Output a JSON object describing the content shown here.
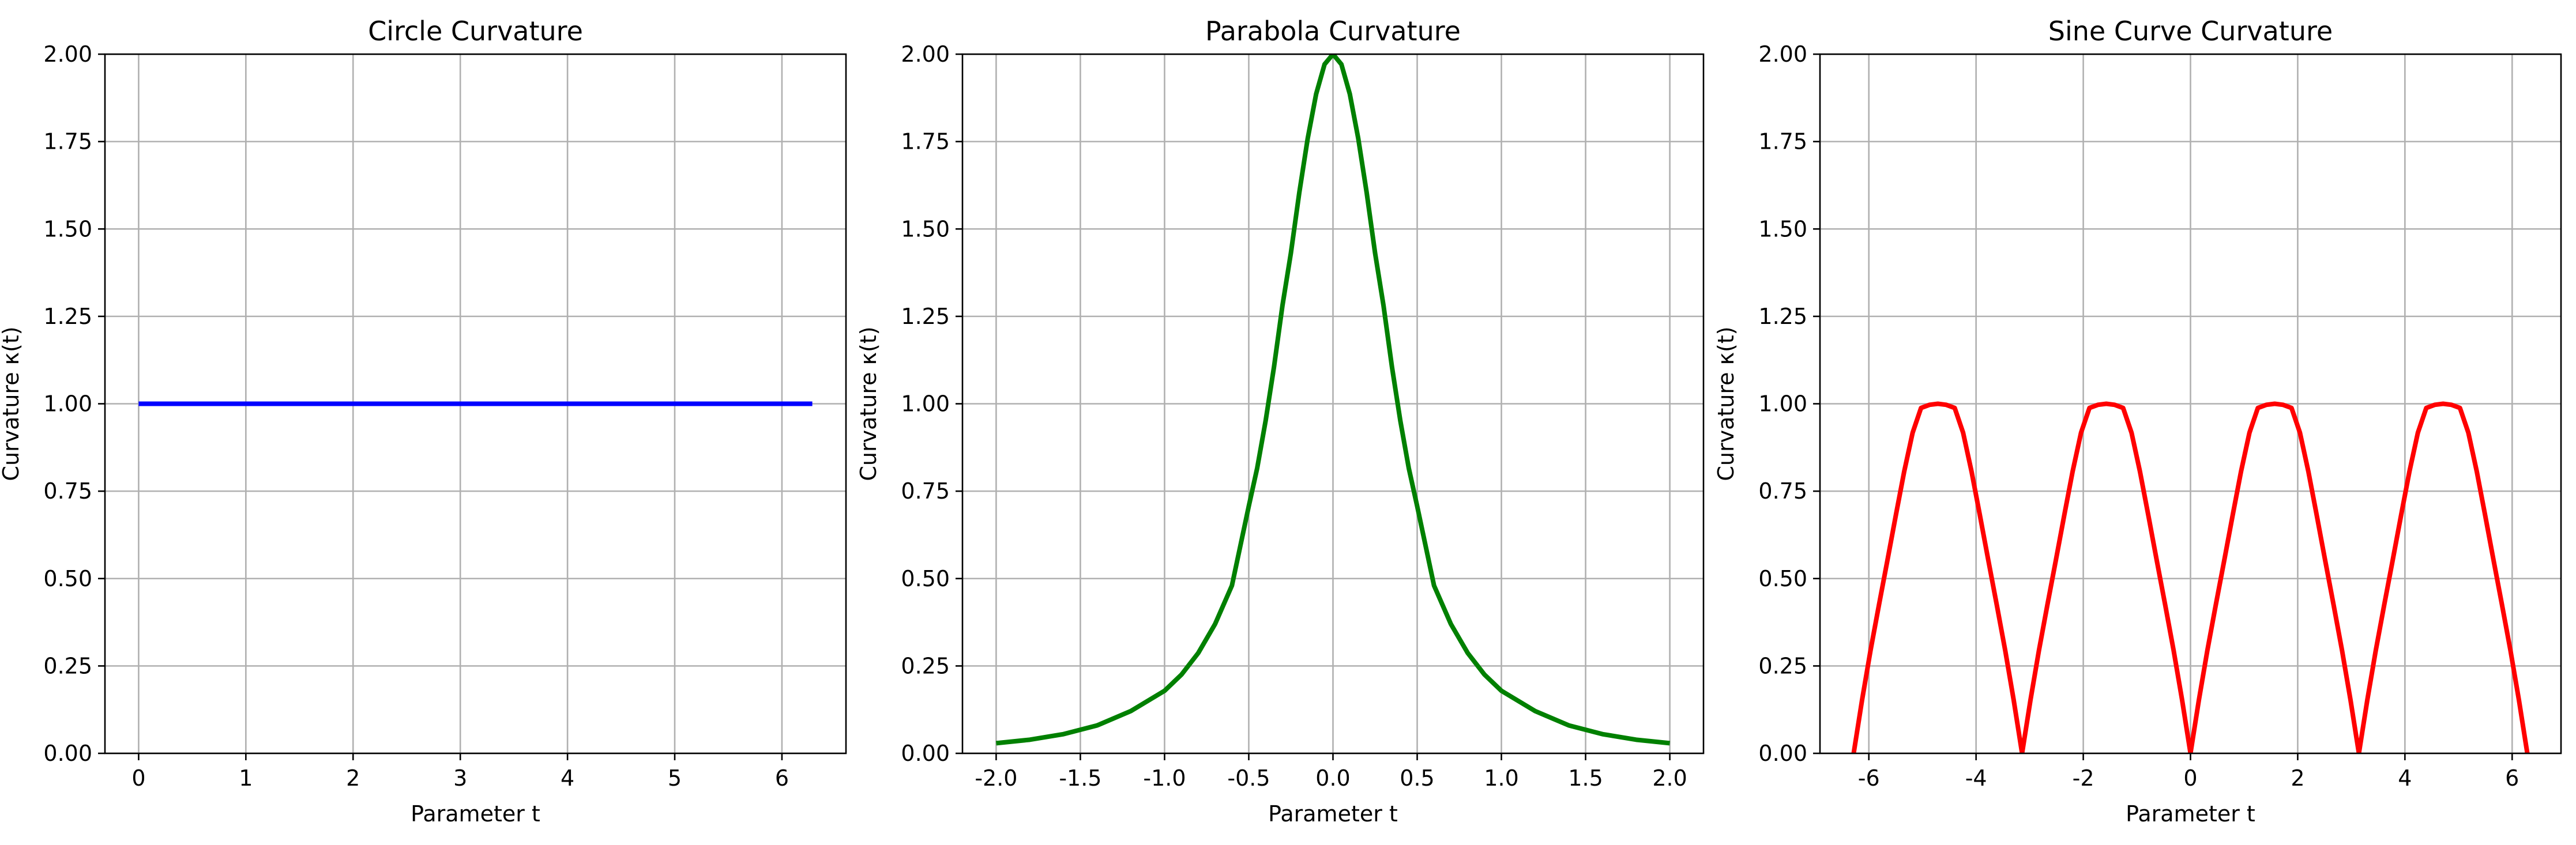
{
  "chart_data": [
    {
      "type": "line",
      "title": "Circle Curvature",
      "xlabel": "Parameter t",
      "ylabel": "Curvature κ(t)",
      "xlim": [
        -0.3142,
        6.5973
      ],
      "ylim": [
        0,
        2
      ],
      "xticks": [
        0,
        1,
        2,
        3,
        4,
        5,
        6
      ],
      "xtick_labels": [
        "0",
        "1",
        "2",
        "3",
        "4",
        "5",
        "6"
      ],
      "yticks": [
        0,
        0.25,
        0.5,
        0.75,
        1.0,
        1.25,
        1.5,
        1.75,
        2.0
      ],
      "ytick_labels": [
        "0.00",
        "0.25",
        "0.50",
        "0.75",
        "1.00",
        "1.25",
        "1.50",
        "1.75",
        "2.00"
      ],
      "grid": true,
      "series": [
        {
          "color": "#0000ff",
          "x": [
            0,
            0.5,
            1,
            1.5,
            2,
            2.5,
            3,
            3.5,
            4,
            4.5,
            5,
            5.5,
            6,
            6.2832
          ],
          "y": [
            1,
            1,
            1,
            1,
            1,
            1,
            1,
            1,
            1,
            1,
            1,
            1,
            1,
            1
          ]
        }
      ]
    },
    {
      "type": "line",
      "title": "Parabola Curvature",
      "xlabel": "Parameter t",
      "ylabel": "Curvature κ(t)",
      "xlim": [
        -2.2,
        2.2
      ],
      "ylim": [
        0,
        2
      ],
      "xticks": [
        -2,
        -1.5,
        -1,
        -0.5,
        0,
        0.5,
        1,
        1.5,
        2
      ],
      "xtick_labels": [
        "-2.0",
        "-1.5",
        "-1.0",
        "-0.5",
        "0.0",
        "0.5",
        "1.0",
        "1.5",
        "2.0"
      ],
      "yticks": [
        0,
        0.25,
        0.5,
        0.75,
        1.0,
        1.25,
        1.5,
        1.75,
        2.0
      ],
      "ytick_labels": [
        "0.00",
        "0.25",
        "0.50",
        "0.75",
        "1.00",
        "1.25",
        "1.50",
        "1.75",
        "2.00"
      ],
      "grid": true,
      "series": [
        {
          "color": "#008000",
          "x": [
            -2,
            -1.8,
            -1.6,
            -1.4,
            -1.2,
            -1,
            -0.9,
            -0.8,
            -0.7,
            -0.6,
            -0.5,
            -0.45,
            -0.4,
            -0.35,
            -0.3,
            -0.25,
            -0.2,
            -0.15,
            -0.1,
            -0.05,
            0,
            0.05,
            0.1,
            0.15,
            0.2,
            0.25,
            0.3,
            0.35,
            0.4,
            0.45,
            0.5,
            0.6,
            0.7,
            0.8,
            0.9,
            1,
            1.2,
            1.4,
            1.6,
            1.8,
            2
          ],
          "y": [
            0.029,
            0.039,
            0.055,
            0.08,
            0.121,
            0.179,
            0.225,
            0.287,
            0.37,
            0.48,
            0.707,
            0.816,
            0.951,
            1.106,
            1.281,
            1.431,
            1.604,
            1.759,
            1.886,
            1.971,
            2.0,
            1.971,
            1.886,
            1.759,
            1.604,
            1.431,
            1.281,
            1.106,
            0.951,
            0.816,
            0.707,
            0.48,
            0.37,
            0.287,
            0.225,
            0.179,
            0.121,
            0.08,
            0.055,
            0.039,
            0.029
          ]
        }
      ]
    },
    {
      "type": "line",
      "title": "Sine Curve Curvature",
      "xlabel": "Parameter t",
      "ylabel": "Curvature κ(t)",
      "xlim": [
        -6.9115,
        6.9115
      ],
      "ylim": [
        0,
        2
      ],
      "xticks": [
        -6,
        -4,
        -2,
        0,
        2,
        4,
        6
      ],
      "xtick_labels": [
        "-6",
        "-4",
        "-2",
        "0",
        "2",
        "4",
        "6"
      ],
      "yticks": [
        0,
        0.25,
        0.5,
        0.75,
        1.0,
        1.25,
        1.5,
        1.75,
        2.0
      ],
      "ytick_labels": [
        "0.00",
        "0.25",
        "0.50",
        "0.75",
        "1.00",
        "1.25",
        "1.50",
        "1.75",
        "2.00"
      ],
      "grid": true,
      "series": [
        {
          "color": "#ff0000",
          "x": [
            -6.2832,
            -6.1261,
            -5.969,
            -5.8119,
            -5.6549,
            -5.4978,
            -5.3407,
            -5.1836,
            -5.0265,
            -4.8695,
            -4.7124,
            -4.5553,
            -4.3982,
            -4.2412,
            -4.0841,
            -3.927,
            -3.7699,
            -3.6128,
            -3.4558,
            -3.2987,
            -3.1416,
            -2.9845,
            -2.8274,
            -2.6704,
            -2.5133,
            -2.3562,
            -2.1991,
            -2.042,
            -1.885,
            -1.7279,
            -1.5708,
            -1.4137,
            -1.2566,
            -1.0996,
            -0.9425,
            -0.7854,
            -0.6283,
            -0.4712,
            -0.3142,
            -0.1571,
            0,
            0.1571,
            0.3142,
            0.4712,
            0.6283,
            0.7854,
            0.9425,
            1.0996,
            1.2566,
            1.4137,
            1.5708,
            1.7279,
            1.885,
            2.042,
            2.1991,
            2.3562,
            2.5133,
            2.6704,
            2.8274,
            2.9845,
            3.1416,
            3.2987,
            3.4558,
            3.6128,
            3.7699,
            3.927,
            4.0841,
            4.2412,
            4.3982,
            4.5553,
            4.7124,
            4.8695,
            5.0265,
            5.1836,
            5.3407,
            5.4978,
            5.6549,
            5.8119,
            5.969,
            6.1261,
            6.2832
          ],
          "y": [
            0,
            0.153,
            0.294,
            0.424,
            0.551,
            0.68,
            0.806,
            0.917,
            0.988,
            0.997,
            1.0,
            0.997,
            0.988,
            0.917,
            0.806,
            0.68,
            0.551,
            0.424,
            0.294,
            0.153,
            0,
            0.153,
            0.294,
            0.424,
            0.551,
            0.68,
            0.806,
            0.917,
            0.988,
            0.997,
            1.0,
            0.997,
            0.988,
            0.917,
            0.806,
            0.68,
            0.551,
            0.424,
            0.294,
            0.153,
            0,
            0.153,
            0.294,
            0.424,
            0.551,
            0.68,
            0.806,
            0.917,
            0.988,
            0.997,
            1.0,
            0.997,
            0.988,
            0.917,
            0.806,
            0.68,
            0.551,
            0.424,
            0.294,
            0.153,
            0,
            0.153,
            0.294,
            0.424,
            0.551,
            0.68,
            0.806,
            0.917,
            0.988,
            0.997,
            1.0,
            0.997,
            0.988,
            0.917,
            0.806,
            0.68,
            0.551,
            0.424,
            0.294,
            0.153,
            0
          ]
        }
      ]
    }
  ]
}
